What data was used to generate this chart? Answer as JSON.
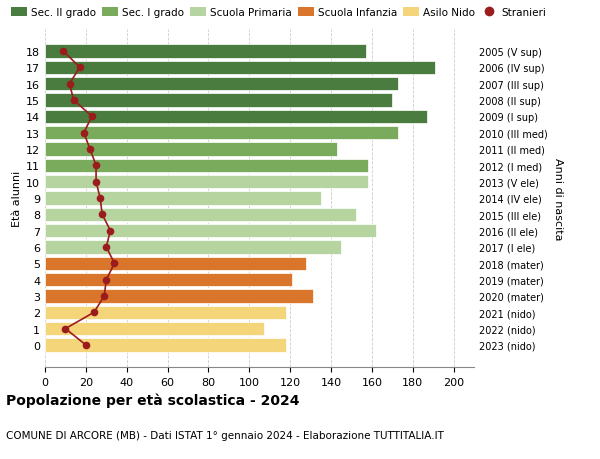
{
  "ages": [
    18,
    17,
    16,
    15,
    14,
    13,
    12,
    11,
    10,
    9,
    8,
    7,
    6,
    5,
    4,
    3,
    2,
    1,
    0
  ],
  "years": [
    "2005 (V sup)",
    "2006 (IV sup)",
    "2007 (III sup)",
    "2008 (II sup)",
    "2009 (I sup)",
    "2010 (III med)",
    "2011 (II med)",
    "2012 (I med)",
    "2013 (V ele)",
    "2014 (IV ele)",
    "2015 (III ele)",
    "2016 (II ele)",
    "2017 (I ele)",
    "2018 (mater)",
    "2019 (mater)",
    "2020 (mater)",
    "2021 (nido)",
    "2022 (nido)",
    "2023 (nido)"
  ],
  "bar_values": [
    157,
    191,
    173,
    170,
    187,
    173,
    143,
    158,
    158,
    135,
    152,
    162,
    145,
    128,
    121,
    131,
    118,
    107,
    118
  ],
  "bar_colors": [
    "#4a7c3f",
    "#4a7c3f",
    "#4a7c3f",
    "#4a7c3f",
    "#4a7c3f",
    "#7aaa5c",
    "#7aaa5c",
    "#7aaa5c",
    "#b5d4a0",
    "#b5d4a0",
    "#b5d4a0",
    "#b5d4a0",
    "#b5d4a0",
    "#d9762b",
    "#d9762b",
    "#d9762b",
    "#f5d57a",
    "#f5d57a",
    "#f5d57a"
  ],
  "stranieri": [
    9,
    17,
    12,
    14,
    23,
    19,
    22,
    25,
    25,
    27,
    28,
    32,
    30,
    34,
    30,
    29,
    24,
    10,
    20
  ],
  "stranieri_color": "#9b1c1c",
  "legend_labels": [
    "Sec. II grado",
    "Sec. I grado",
    "Scuola Primaria",
    "Scuola Infanzia",
    "Asilo Nido",
    "Stranieri"
  ],
  "legend_colors": [
    "#4a7c3f",
    "#7aaa5c",
    "#b5d4a0",
    "#d9762b",
    "#f5d57a",
    "#cc0000"
  ],
  "ylabel_left": "Età alunni",
  "ylabel_right": "Anni di nascita",
  "title": "Popolazione per età scolastica - 2024",
  "subtitle": "COMUNE DI ARCORE (MB) - Dati ISTAT 1° gennaio 2024 - Elaborazione TUTTITALIA.IT",
  "xlim": [
    0,
    210
  ],
  "xticks": [
    0,
    20,
    40,
    60,
    80,
    100,
    120,
    140,
    160,
    180,
    200
  ],
  "bg_color": "#ffffff",
  "grid_color": "#cccccc",
  "bar_height": 0.82
}
